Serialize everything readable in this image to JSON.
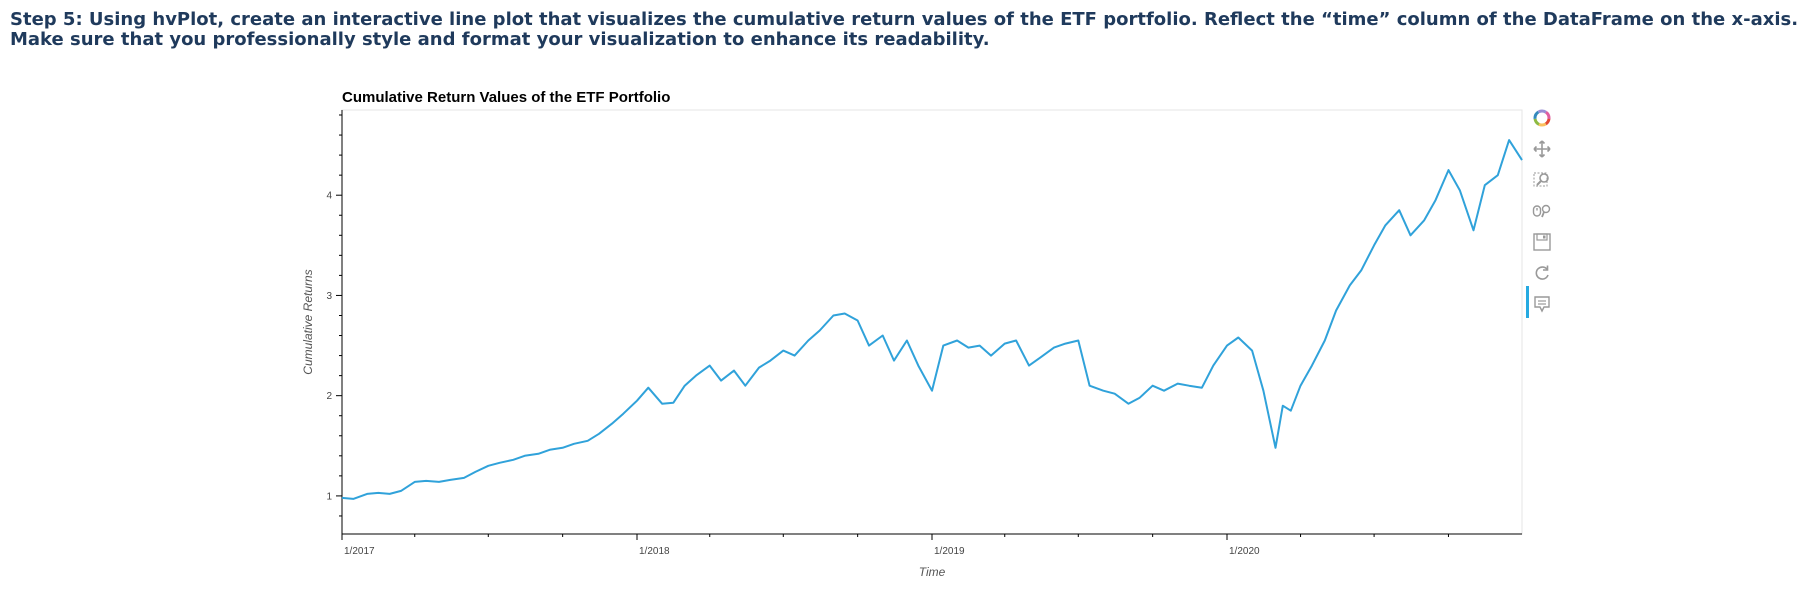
{
  "instructions": "Step 5: Using hvPlot, create an interactive line plot that visualizes the cumulative return values of the ETF portfolio. Reflect the “time” column of the DataFrame on the x-axis. Make sure that you professionally style and format your visualization to enhance its readability.",
  "toolbar": {
    "tools": [
      {
        "name": "bokeh-logo-icon"
      },
      {
        "name": "pan-icon"
      },
      {
        "name": "box-zoom-icon"
      },
      {
        "name": "wheel-zoom-icon"
      },
      {
        "name": "save-icon"
      },
      {
        "name": "reset-icon"
      },
      {
        "name": "hover-icon"
      }
    ]
  },
  "chart_data": {
    "type": "line",
    "title": "Cumulative Return Values of the ETF Portfolio",
    "xlabel": "Time",
    "ylabel": "Cumulative Returns",
    "x_ticks": [
      "1/2017",
      "1/2018",
      "1/2019",
      "1/2020"
    ],
    "y_ticks": [
      1,
      2,
      3,
      4
    ],
    "xlim": [
      "2017-01-01",
      "2020-12-31"
    ],
    "ylim": [
      0.62,
      4.85
    ],
    "grid": false,
    "line_color": "#30a2da",
    "series": [
      {
        "x": [
          "2017-01-01",
          "2017-01-15",
          "2017-02-01",
          "2017-02-15",
          "2017-03-01",
          "2017-03-15",
          "2017-04-01",
          "2017-04-15",
          "2017-05-01",
          "2017-05-15",
          "2017-06-01",
          "2017-06-15",
          "2017-07-01",
          "2017-07-15",
          "2017-08-01",
          "2017-08-15",
          "2017-09-01",
          "2017-09-15",
          "2017-10-01",
          "2017-10-15",
          "2017-11-01",
          "2017-11-15",
          "2017-12-01",
          "2017-12-15",
          "2018-01-01",
          "2018-01-15",
          "2018-02-01",
          "2018-02-15",
          "2018-03-01",
          "2018-03-15",
          "2018-04-01",
          "2018-04-15",
          "2018-05-01",
          "2018-05-15",
          "2018-06-01",
          "2018-06-15",
          "2018-07-01",
          "2018-07-15",
          "2018-08-01",
          "2018-08-15",
          "2018-09-01",
          "2018-09-15",
          "2018-10-01",
          "2018-10-15",
          "2018-11-01",
          "2018-11-15",
          "2018-12-01",
          "2018-12-15",
          "2019-01-01",
          "2019-01-15",
          "2019-02-01",
          "2019-02-15",
          "2019-03-01",
          "2019-03-15",
          "2019-04-01",
          "2019-04-15",
          "2019-05-01",
          "2019-05-15",
          "2019-06-01",
          "2019-06-15",
          "2019-07-01",
          "2019-07-15",
          "2019-08-01",
          "2019-08-15",
          "2019-09-01",
          "2019-09-15",
          "2019-10-01",
          "2019-10-15",
          "2019-11-01",
          "2019-11-15",
          "2019-12-01",
          "2019-12-15",
          "2020-01-01",
          "2020-01-15",
          "2020-02-01",
          "2020-02-15",
          "2020-03-01",
          "2020-03-10",
          "2020-03-20",
          "2020-04-01",
          "2020-04-15",
          "2020-05-01",
          "2020-05-15",
          "2020-06-01",
          "2020-06-15",
          "2020-07-01",
          "2020-07-15",
          "2020-08-01",
          "2020-08-15",
          "2020-09-01",
          "2020-09-15",
          "2020-10-01",
          "2020-10-15",
          "2020-11-01",
          "2020-11-15",
          "2020-12-01",
          "2020-12-15",
          "2020-12-31"
        ],
        "y": [
          0.98,
          0.97,
          1.02,
          1.03,
          1.02,
          1.05,
          1.14,
          1.15,
          1.14,
          1.16,
          1.18,
          1.24,
          1.3,
          1.33,
          1.36,
          1.4,
          1.42,
          1.46,
          1.48,
          1.52,
          1.55,
          1.62,
          1.72,
          1.82,
          1.95,
          2.08,
          1.92,
          1.93,
          2.1,
          2.2,
          2.3,
          2.15,
          2.25,
          2.1,
          2.28,
          2.35,
          2.45,
          2.4,
          2.55,
          2.65,
          2.8,
          2.82,
          2.75,
          2.5,
          2.6,
          2.35,
          2.55,
          2.3,
          2.05,
          2.5,
          2.55,
          2.48,
          2.5,
          2.4,
          2.52,
          2.55,
          2.3,
          2.38,
          2.48,
          2.52,
          2.55,
          2.1,
          2.05,
          2.02,
          1.92,
          1.98,
          2.1,
          2.05,
          2.12,
          2.1,
          2.08,
          2.3,
          2.5,
          2.58,
          2.45,
          2.05,
          1.48,
          1.9,
          1.85,
          2.1,
          2.3,
          2.55,
          2.85,
          3.1,
          3.25,
          3.5,
          3.7,
          3.85,
          3.6,
          3.75,
          3.95,
          4.25,
          4.05,
          3.65,
          4.1,
          4.2,
          4.55,
          4.35
        ]
      }
    ]
  }
}
